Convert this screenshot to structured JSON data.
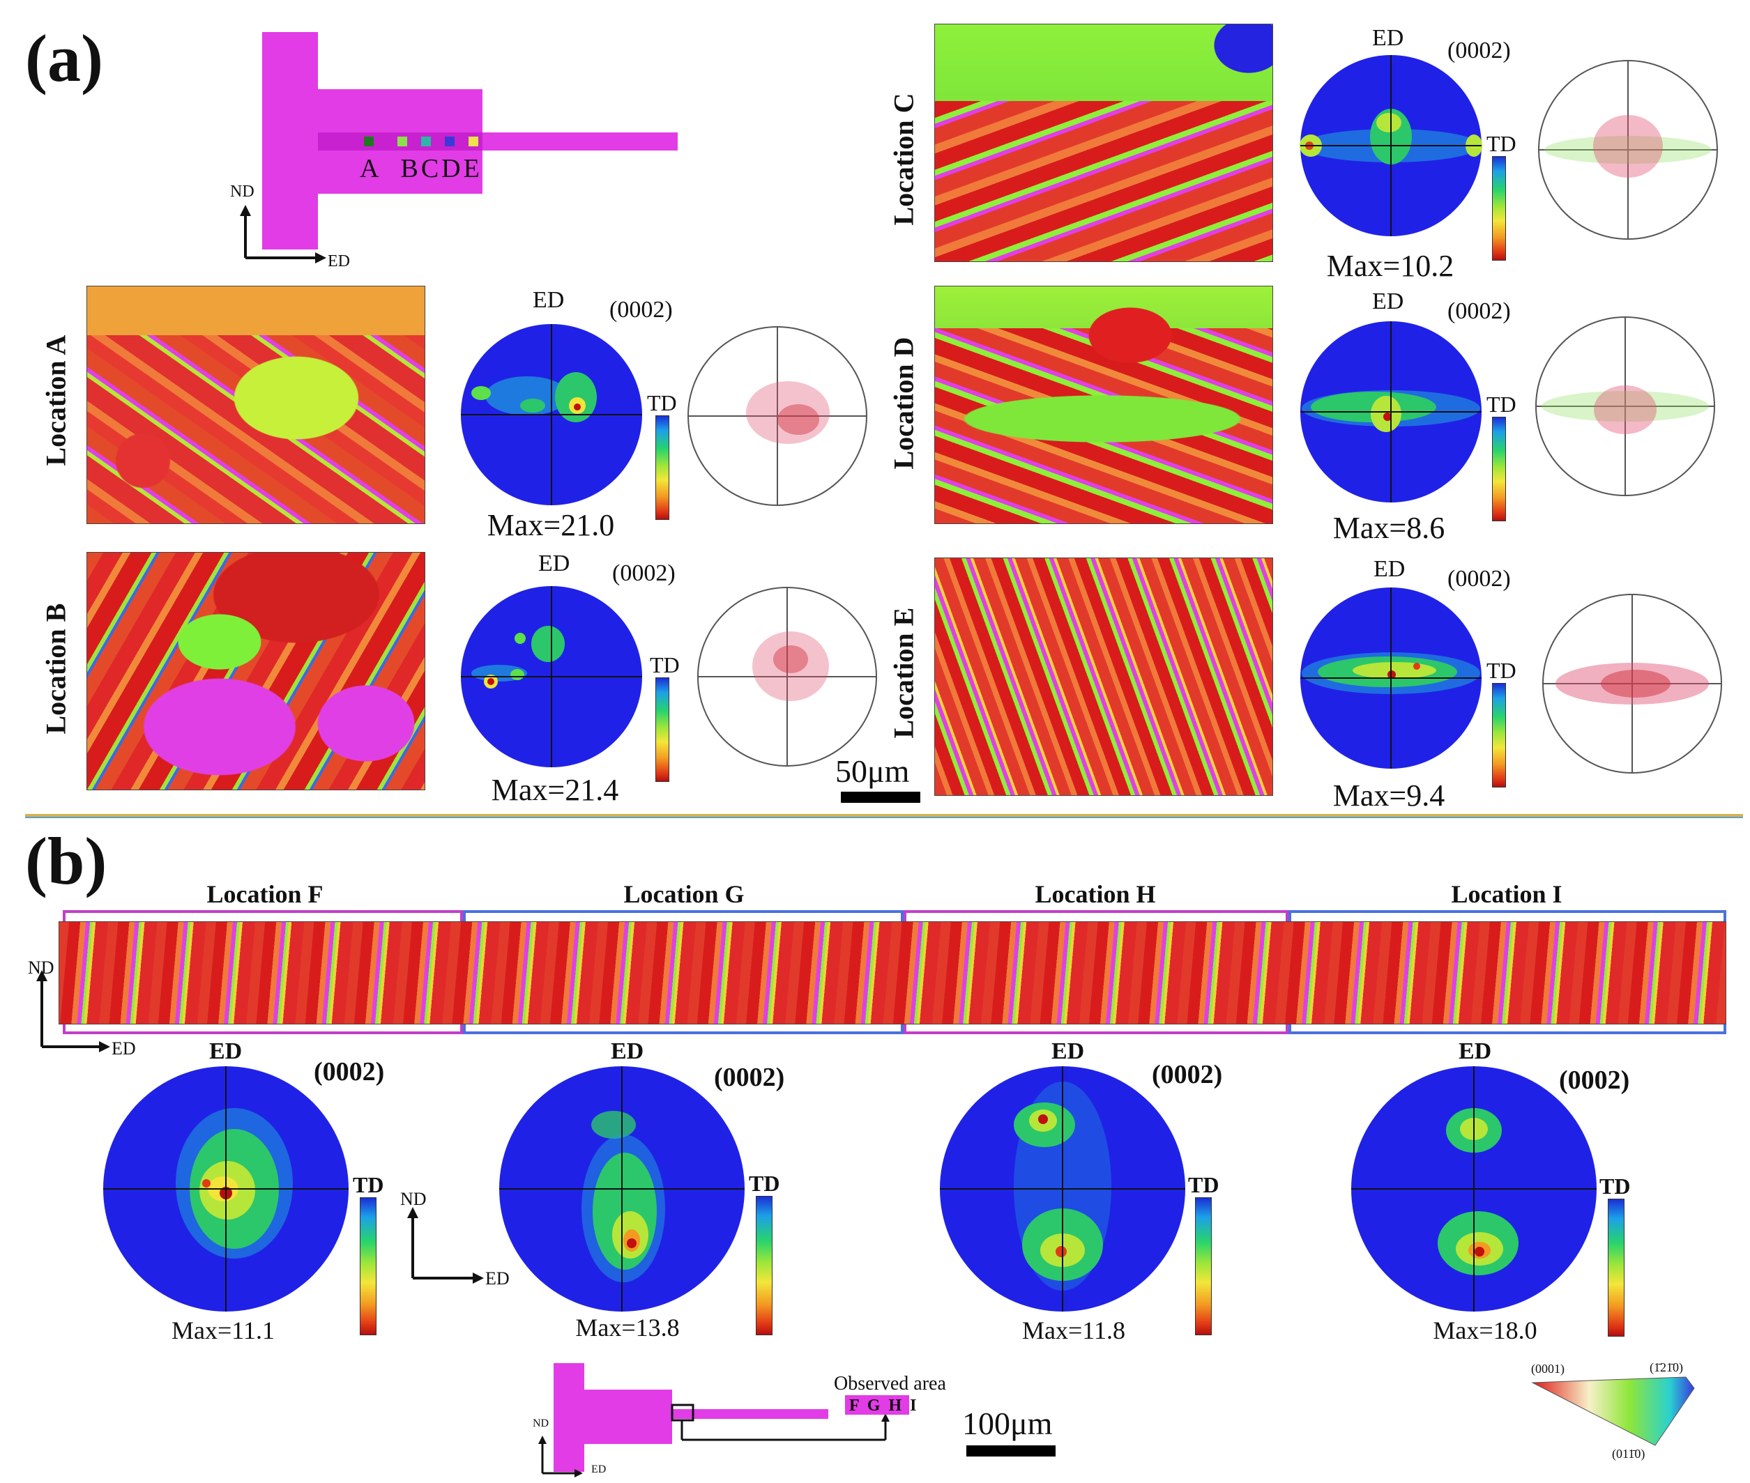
{
  "panel_a": {
    "label": "(a)",
    "schematic": {
      "points": [
        "A",
        "B",
        "C",
        "D",
        "E"
      ],
      "axis_nd": "ND",
      "axis_ed": "ED"
    },
    "locations": [
      {
        "name": "Location A",
        "plane": "(0002)",
        "ed": "ED",
        "td": "TD",
        "max": "Max=21.0"
      },
      {
        "name": "Location B",
        "plane": "(0002)",
        "ed": "ED",
        "td": "TD",
        "max": "Max=21.4"
      },
      {
        "name": "Location C",
        "plane": "(0002)",
        "ed": "ED",
        "td": "TD",
        "max": "Max=10.2"
      },
      {
        "name": "Location D",
        "plane": "(0002)",
        "ed": "ED",
        "td": "TD",
        "max": "Max=8.6"
      },
      {
        "name": "Location E",
        "plane": "(0002)",
        "ed": "ED",
        "td": "TD",
        "max": "Max=9.4"
      }
    ],
    "scale_bar": "50μm"
  },
  "panel_b": {
    "label": "(b)",
    "locations": [
      {
        "name": "Location F",
        "plane": "(0002)",
        "ed": "ED",
        "td": "TD",
        "max": "Max=11.1"
      },
      {
        "name": "Location G",
        "plane": "(0002)",
        "ed": "ED",
        "td": "TD",
        "max": "Max=13.8"
      },
      {
        "name": "Location H",
        "plane": "(0002)",
        "ed": "ED",
        "td": "TD",
        "max": "Max=11.8"
      },
      {
        "name": "Location I",
        "plane": "(0002)",
        "ed": "ED",
        "td": "TD",
        "max": "Max=18.0"
      }
    ],
    "axis_nd": "ND",
    "axis_ed": "ED",
    "observed_area": "Observed area",
    "observed_letters": "F  G  H  I",
    "scale_bar": "100μm",
    "ipf_key": {
      "corner_0001": "(0001)",
      "corner_1210": "(1̄21̄0)",
      "corner_0110": "(011̄0)"
    }
  },
  "colors": {
    "magenta": "#e23ce6",
    "pole_blue": "#1f22e6",
    "divider_gold": "#d9b24a",
    "divider_blue": "#5aa0d8"
  }
}
